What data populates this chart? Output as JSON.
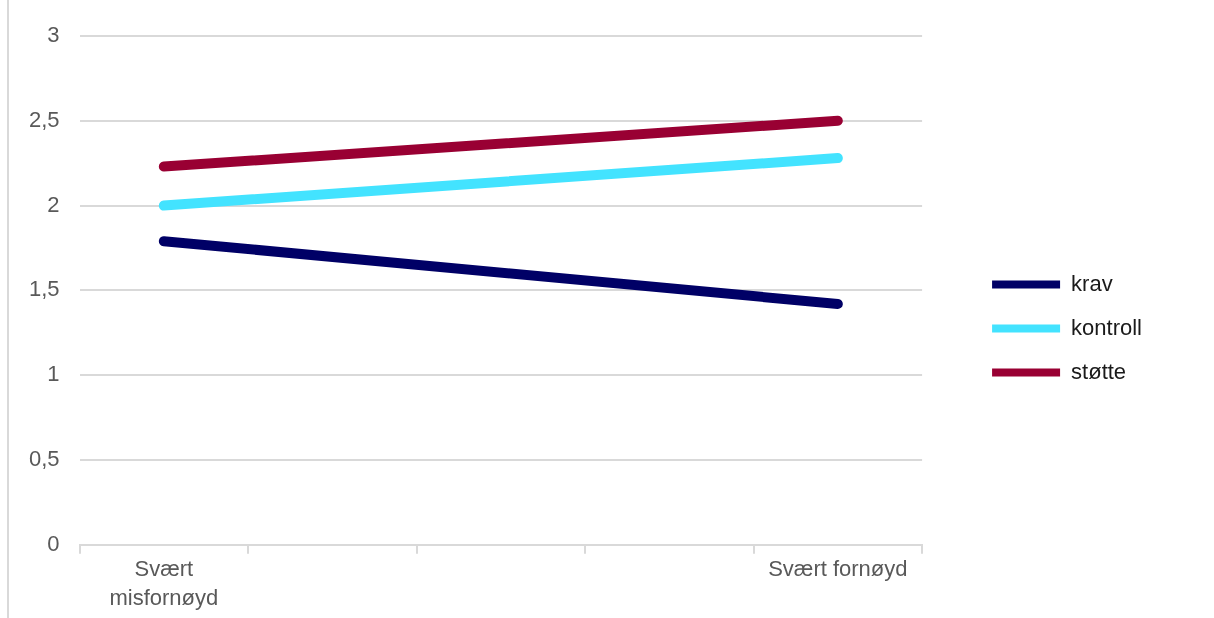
{
  "chart_data": {
    "type": "line",
    "categories": [
      "Svært misfornøyd",
      null,
      null,
      null,
      "Svært fornøyd"
    ],
    "series": [
      {
        "name": "krav",
        "color": "#000066",
        "values": [
          1.79,
          null,
          null,
          null,
          1.42
        ]
      },
      {
        "name": "kontroll",
        "color": "#43e3ff",
        "values": [
          2.0,
          null,
          null,
          null,
          2.28
        ]
      },
      {
        "name": "støtte",
        "color": "#990033",
        "values": [
          2.23,
          null,
          null,
          null,
          2.5
        ]
      }
    ],
    "ylim": [
      0,
      3
    ],
    "yticks": [
      0,
      {
        "value": 0.5,
        "label": "0,5"
      },
      1,
      {
        "value": 1.5,
        "label": "1,5"
      },
      2,
      {
        "value": 2.5,
        "label": "2,5"
      },
      3
    ],
    "grid": "y",
    "legend": "right"
  }
}
